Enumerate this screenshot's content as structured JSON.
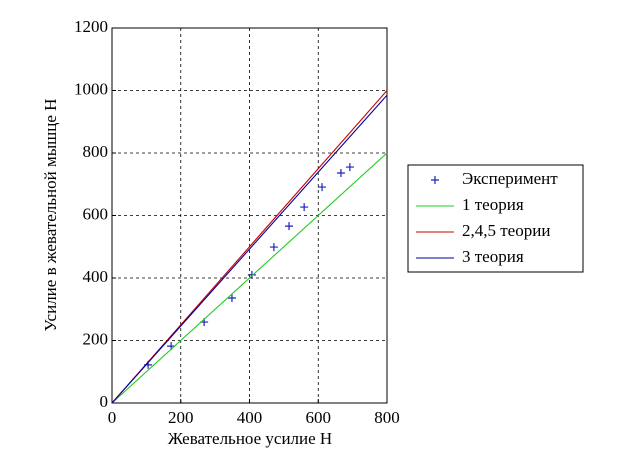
{
  "chart_data": {
    "type": "line",
    "xlabel": "Жевательное усилие Н",
    "ylabel": "Усилие в жевательной мышце Н",
    "xlim": [
      0,
      800
    ],
    "ylim": [
      0,
      1200
    ],
    "xticks": [
      0,
      200,
      400,
      600,
      800
    ],
    "yticks": [
      0,
      200,
      400,
      600,
      800,
      1000,
      1200
    ],
    "grid": true,
    "legend": "right",
    "series": [
      {
        "name": "Эксперимент",
        "color": "#1f1fbf",
        "marker": "+",
        "line": false,
        "x": [
          105,
          172,
          268,
          349,
          407,
          471,
          515,
          559,
          611,
          666,
          692
        ],
        "values": [
          122,
          182,
          259,
          336,
          410,
          499,
          566,
          627,
          691,
          736,
          755
        ]
      },
      {
        "name": "1 теория",
        "color": "#22cc22",
        "line": true,
        "x": [
          0,
          800
        ],
        "values": [
          0,
          800
        ]
      },
      {
        "name": "2,4,5 теории",
        "color": "#cc0000",
        "line": true,
        "x": [
          0,
          800
        ],
        "values": [
          0,
          1000
        ]
      },
      {
        "name": "3 теория",
        "color": "#000099",
        "line": true,
        "x": [
          0,
          800
        ],
        "values": [
          0,
          985
        ]
      }
    ]
  }
}
